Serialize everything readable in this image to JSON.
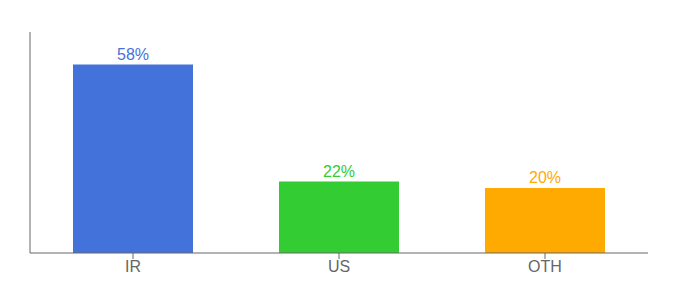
{
  "chart_data": {
    "type": "bar",
    "categories": [
      "IR",
      "US",
      "OTH"
    ],
    "values": [
      58,
      22,
      20
    ],
    "value_labels": [
      "58%",
      "22%",
      "20%"
    ],
    "colors": [
      "#4472db",
      "#33cc33",
      "#ffaa00"
    ],
    "ylim": [
      0,
      68
    ],
    "data_labels": true,
    "tick_labels": "x",
    "grid": false
  }
}
